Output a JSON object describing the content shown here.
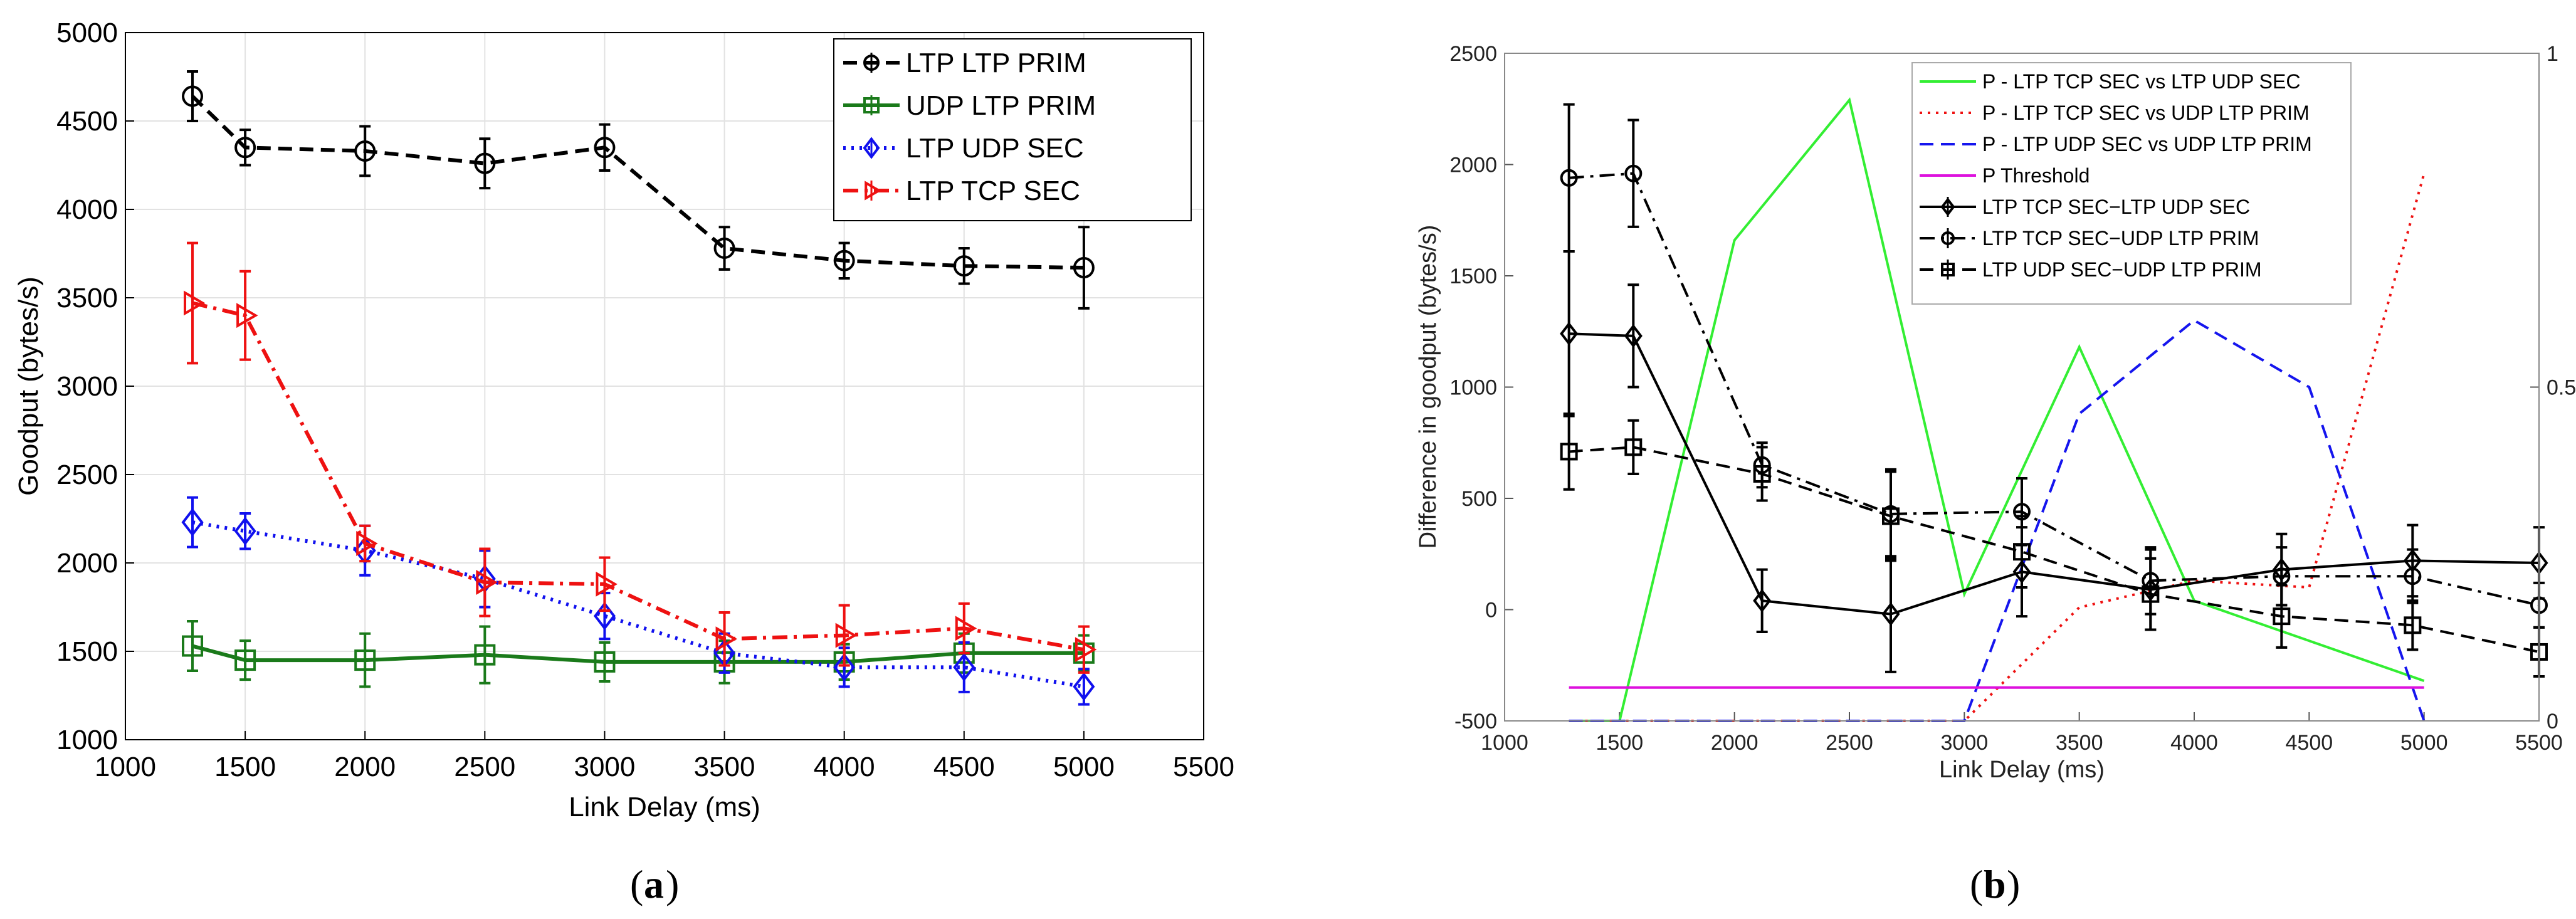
{
  "chart_data": [
    {
      "type": "line",
      "panel_label": "a",
      "xlabel": "Link Delay (ms)",
      "ylabel": "Goodput (bytes/s)",
      "xlim": [
        1000,
        5500
      ],
      "ylim": [
        1000,
        5000
      ],
      "xticks": [
        "1000",
        "1500",
        "2000",
        "2500",
        "3000",
        "3500",
        "4000",
        "4500",
        "5000",
        "5500"
      ],
      "yticks": [
        "1000",
        "1500",
        "2000",
        "2500",
        "3000",
        "3500",
        "4000",
        "4500",
        "5000"
      ],
      "grid": true,
      "legend_position": "top-right",
      "series": [
        {
          "name": "LTP LTP PRIM",
          "color": "#000000",
          "style": "dash",
          "marker": "circle",
          "x": [
            1280,
            1500,
            2000,
            2500,
            3000,
            3500,
            4000,
            4500,
            5000
          ],
          "y": [
            4640,
            4350,
            4330,
            4260,
            4350,
            3780,
            3710,
            3680,
            3670
          ],
          "err": [
            140,
            100,
            140,
            140,
            130,
            120,
            100,
            100,
            230
          ]
        },
        {
          "name": "UDP LTP PRIM",
          "color": "#1a7a1a",
          "style": "solid",
          "marker": "square",
          "x": [
            1280,
            1500,
            2000,
            2500,
            3000,
            3500,
            4000,
            4500,
            5000
          ],
          "y": [
            1530,
            1450,
            1450,
            1480,
            1440,
            1440,
            1440,
            1490,
            1490
          ],
          "err": [
            140,
            110,
            150,
            160,
            110,
            120,
            100,
            110,
            100
          ]
        },
        {
          "name": "LTP UDP SEC",
          "color": "#1010ee",
          "style": "dot",
          "marker": "diamond",
          "x": [
            1280,
            1500,
            2000,
            2500,
            3000,
            3500,
            4000,
            4500,
            5000
          ],
          "y": [
            2230,
            2180,
            2070,
            1910,
            1700,
            1490,
            1410,
            1410,
            1300
          ],
          "err": [
            140,
            100,
            140,
            160,
            130,
            110,
            110,
            140,
            100
          ]
        },
        {
          "name": "LTP TCP SEC",
          "color": "#ee1111",
          "style": "dashdot",
          "marker": "triangle-right",
          "x": [
            1280,
            1500,
            2000,
            2500,
            3000,
            3500,
            4000,
            4500,
            5000
          ],
          "y": [
            3470,
            3400,
            2110,
            1890,
            1880,
            1570,
            1590,
            1630,
            1510
          ],
          "err": [
            340,
            250,
            100,
            190,
            150,
            150,
            170,
            140,
            130
          ]
        }
      ]
    },
    {
      "type": "line",
      "panel_label": "b",
      "xlabel": "Link Delay (ms)",
      "ylabel": "Difference in goodput (bytes/s)",
      "xlim": [
        1000,
        5500
      ],
      "ylim": [
        -500,
        2500
      ],
      "y2lim": [
        0,
        1
      ],
      "xticks": [
        "1000",
        "1500",
        "2000",
        "2500",
        "3000",
        "3500",
        "4000",
        "4500",
        "5000",
        "5500"
      ],
      "yticks": [
        "-500",
        "0",
        "500",
        "1000",
        "1500",
        "2000",
        "2500"
      ],
      "y2ticks": [
        "0",
        "0.5",
        "1"
      ],
      "grid": false,
      "legend_position": "top-left",
      "series": [
        {
          "name": "P - LTP TCP SEC vs LTP UDP SEC",
          "axis": "right",
          "color": "#33ee33",
          "style": "solid",
          "x": [
            1280,
            1500,
            2000,
            2500,
            3000,
            3500,
            4000,
            5000
          ],
          "y": [
            0,
            0,
            0.72,
            0.93,
            0.19,
            0.56,
            0.18,
            0.06
          ]
        },
        {
          "name": "P - LTP TCP SEC vs UDP LTP PRIM",
          "axis": "right",
          "color": "#ee1111",
          "style": "dot",
          "x": [
            1280,
            3000,
            3500,
            4000,
            4500,
            5000
          ],
          "y": [
            0,
            0,
            0.17,
            0.21,
            0.2,
            0.82
          ]
        },
        {
          "name": "P - LTP UDP SEC vs UDP LTP PRIM",
          "axis": "right",
          "color": "#1515ee",
          "style": "dash",
          "x": [
            1280,
            3000,
            3500,
            4000,
            4500,
            5000
          ],
          "y": [
            0,
            0,
            0.46,
            0.6,
            0.5,
            0
          ]
        },
        {
          "name": "P Threshold",
          "axis": "right",
          "color": "#dd11dd",
          "style": "solid",
          "x": [
            1280,
            5000
          ],
          "y": [
            0.05,
            0.05
          ]
        },
        {
          "name": "LTP TCP SEC−LTP UDP SEC",
          "axis": "left",
          "color": "#000000",
          "style": "solid",
          "marker": "diamond",
          "x": [
            1280,
            1560,
            2120,
            2680,
            3250,
            3810,
            4380,
            4950,
            5500
          ],
          "y": [
            1240,
            1230,
            40,
            -20,
            170,
            90,
            180,
            220,
            210
          ],
          "err": [
            370,
            230,
            140,
            260,
            200,
            180,
            160,
            160,
            160
          ]
        },
        {
          "name": "LTP TCP SEC−UDP LTP PRIM",
          "axis": "left",
          "color": "#000000",
          "style": "dashdot",
          "marker": "circle",
          "x": [
            1280,
            1560,
            2120,
            2680,
            3250,
            3810,
            4380,
            4950,
            5500
          ],
          "y": [
            1940,
            1960,
            650,
            430,
            440,
            130,
            150,
            150,
            20
          ],
          "err": [
            330,
            240,
            100,
            200,
            150,
            150,
            130,
            120,
            100
          ]
        },
        {
          "name": "LTP UDP SEC−UDP LTP PRIM",
          "axis": "left",
          "color": "#000000",
          "style": "dash",
          "marker": "square",
          "x": [
            1280,
            1560,
            2120,
            2680,
            3250,
            3810,
            4380,
            4950,
            5500
          ],
          "y": [
            710,
            730,
            610,
            420,
            260,
            70,
            -30,
            -70,
            -190
          ],
          "err": [
            170,
            120,
            120,
            200,
            160,
            160,
            140,
            110,
            110
          ]
        }
      ]
    }
  ]
}
